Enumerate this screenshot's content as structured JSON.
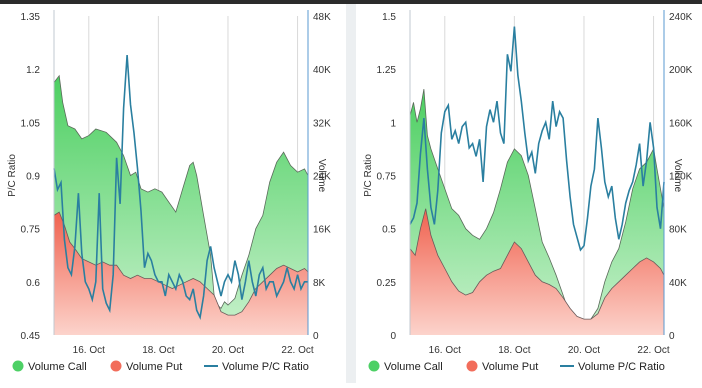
{
  "chart_data": [
    {
      "type": "area",
      "title": "",
      "xlabel": "",
      "ylabel": "P/C Ratio",
      "y2label": "Volume",
      "ylim": [
        0.45,
        1.35
      ],
      "y2lim": [
        0,
        48000
      ],
      "yticks": [
        "1.35",
        "1.2",
        "1.05",
        "0.9",
        "0.75",
        "0.6",
        "0.45"
      ],
      "y2ticks": [
        "48K",
        "40K",
        "32K",
        "24K",
        "16K",
        "8K",
        "0"
      ],
      "xticks": [
        "16. Oct",
        "18. Oct",
        "20. Oct",
        "22. Oct"
      ],
      "xtick_values": [
        16,
        18,
        20,
        22
      ],
      "xlim": [
        15.0,
        22.3
      ],
      "grid": "vertical",
      "legend_position": "bottom",
      "legend": [
        "Volume Call",
        "Volume Put",
        "Volume P/C Ratio"
      ],
      "series": [
        {
          "name": "Volume Call",
          "axis": "right",
          "color": "#4dd065",
          "x": [
            15.0,
            15.15,
            15.25,
            15.4,
            15.6,
            15.8,
            16.0,
            16.2,
            16.5,
            16.8,
            17.0,
            17.2,
            17.35,
            17.5,
            17.7,
            17.9,
            18.1,
            18.3,
            18.5,
            18.7,
            18.9,
            19.0,
            19.1,
            19.3,
            19.5,
            19.6,
            19.7,
            19.8,
            19.9,
            20.0,
            20.2,
            20.4,
            20.6,
            20.8,
            21.0,
            21.2,
            21.4,
            21.6,
            21.8,
            22.0,
            22.2,
            22.3
          ],
          "values": [
            38000,
            39000,
            35000,
            31500,
            31000,
            29500,
            30000,
            31000,
            30500,
            29000,
            27000,
            24000,
            24500,
            22000,
            21500,
            22000,
            21500,
            20000,
            18500,
            22000,
            25500,
            26000,
            24000,
            18000,
            12000,
            6000,
            4500,
            4000,
            5000,
            4500,
            5500,
            9000,
            12000,
            16000,
            18000,
            23000,
            26000,
            27500,
            25500,
            24500,
            25000,
            24000
          ]
        },
        {
          "name": "Volume Put",
          "axis": "right",
          "color": "#f26d5b",
          "x": [
            15.0,
            15.15,
            15.3,
            15.45,
            15.6,
            15.8,
            16.0,
            16.2,
            16.4,
            16.6,
            16.8,
            17.0,
            17.2,
            17.4,
            17.6,
            17.8,
            18.0,
            18.2,
            18.4,
            18.6,
            18.8,
            19.0,
            19.2,
            19.4,
            19.6,
            19.8,
            20.0,
            20.2,
            20.4,
            20.6,
            20.8,
            21.0,
            21.2,
            21.4,
            21.6,
            21.8,
            22.0,
            22.2,
            22.3
          ],
          "values": [
            18000,
            18500,
            16500,
            14000,
            13000,
            11500,
            11000,
            10500,
            11000,
            10500,
            10500,
            9000,
            8500,
            9000,
            8500,
            8500,
            8000,
            7500,
            7000,
            7500,
            8000,
            8500,
            8000,
            7000,
            6000,
            3500,
            3000,
            3000,
            3500,
            5000,
            7000,
            8000,
            9000,
            10000,
            10500,
            10000,
            9500,
            10000,
            9500
          ]
        },
        {
          "name": "Volume P/C Ratio",
          "axis": "left",
          "color": "#2a7fa0",
          "x": [
            15.0,
            15.1,
            15.2,
            15.3,
            15.4,
            15.5,
            15.6,
            15.7,
            15.8,
            15.9,
            16.0,
            16.1,
            16.2,
            16.3,
            16.4,
            16.5,
            16.6,
            16.7,
            16.8,
            16.9,
            17.0,
            17.1,
            17.2,
            17.3,
            17.4,
            17.5,
            17.6,
            17.7,
            17.8,
            17.9,
            18.0,
            18.1,
            18.2,
            18.3,
            18.4,
            18.5,
            18.6,
            18.7,
            18.8,
            18.9,
            19.0,
            19.1,
            19.2,
            19.3,
            19.4,
            19.5,
            19.6,
            19.7,
            19.8,
            19.9,
            20.0,
            20.1,
            20.2,
            20.3,
            20.4,
            20.5,
            20.6,
            20.7,
            20.8,
            20.9,
            21.0,
            21.1,
            21.2,
            21.3,
            21.4,
            21.5,
            21.6,
            21.7,
            21.8,
            21.9,
            22.0,
            22.1,
            22.2,
            22.3
          ],
          "values": [
            0.92,
            0.86,
            0.88,
            0.72,
            0.64,
            0.62,
            0.7,
            0.85,
            0.68,
            0.6,
            0.58,
            0.55,
            0.6,
            0.85,
            0.58,
            0.54,
            0.52,
            0.62,
            0.95,
            0.82,
            1.09,
            1.24,
            1.1,
            1.02,
            0.92,
            0.8,
            0.64,
            0.68,
            0.66,
            0.62,
            0.6,
            0.6,
            0.56,
            0.62,
            0.6,
            0.58,
            0.62,
            0.6,
            0.56,
            0.55,
            0.58,
            0.52,
            0.5,
            0.56,
            0.66,
            0.7,
            0.64,
            0.6,
            0.56,
            0.6,
            0.62,
            0.6,
            0.66,
            0.62,
            0.55,
            0.6,
            0.66,
            0.6,
            0.56,
            0.62,
            0.64,
            0.58,
            0.6,
            0.6,
            0.56,
            0.58,
            0.6,
            0.64,
            0.6,
            0.58,
            0.62,
            0.58,
            0.6,
            0.6
          ]
        }
      ]
    },
    {
      "type": "area",
      "title": "",
      "xlabel": "",
      "ylabel": "P/C Ratio",
      "y2label": "Volume",
      "ylim": [
        0,
        1.5
      ],
      "y2lim": [
        0,
        240000
      ],
      "yticks": [
        "1.5",
        "1.25",
        "1",
        "0.75",
        "0.5",
        "0.25",
        "0"
      ],
      "y2ticks": [
        "240K",
        "200K",
        "160K",
        "120K",
        "80K",
        "40K",
        "0"
      ],
      "xticks": [
        "16. Oct",
        "18. Oct",
        "20. Oct",
        "22. Oct"
      ],
      "xtick_values": [
        16,
        18,
        20,
        22
      ],
      "xlim": [
        15.0,
        22.3
      ],
      "grid": "vertical",
      "legend_position": "bottom",
      "legend": [
        "Volume Call",
        "Volume Put",
        "Volume P/C Ratio"
      ],
      "series": [
        {
          "name": "Volume Call",
          "axis": "right",
          "color": "#4dd065",
          "x": [
            15.0,
            15.1,
            15.2,
            15.3,
            15.4,
            15.5,
            15.6,
            15.8,
            16.0,
            16.2,
            16.4,
            16.6,
            16.8,
            17.0,
            17.2,
            17.4,
            17.6,
            17.8,
            18.0,
            18.2,
            18.4,
            18.6,
            18.8,
            19.0,
            19.2,
            19.4,
            19.6,
            19.8,
            20.0,
            20.2,
            20.4,
            20.6,
            20.8,
            21.0,
            21.2,
            21.4,
            21.6,
            21.8,
            22.0,
            22.1,
            22.2,
            22.3
          ],
          "values": [
            165000,
            175000,
            160000,
            170000,
            185000,
            150000,
            140000,
            125000,
            110000,
            95000,
            90000,
            80000,
            75000,
            72000,
            80000,
            92000,
            110000,
            130000,
            140000,
            135000,
            120000,
            95000,
            70000,
            58000,
            45000,
            30000,
            15000,
            8000,
            10000,
            12000,
            20000,
            40000,
            55000,
            65000,
            85000,
            110000,
            125000,
            130000,
            140000,
            125000,
            110000,
            95000
          ]
        },
        {
          "name": "Volume Put",
          "axis": "right",
          "color": "#f26d5b",
          "x": [
            15.0,
            15.15,
            15.3,
            15.45,
            15.6,
            15.8,
            16.0,
            16.2,
            16.4,
            16.6,
            16.8,
            17.0,
            17.2,
            17.4,
            17.6,
            17.8,
            18.0,
            18.2,
            18.4,
            18.6,
            18.8,
            19.0,
            19.2,
            19.4,
            19.6,
            19.8,
            20.0,
            20.2,
            20.4,
            20.6,
            20.8,
            21.0,
            21.2,
            21.4,
            21.6,
            21.8,
            22.0,
            22.2,
            22.3
          ],
          "values": [
            65000,
            60000,
            80000,
            95000,
            75000,
            60000,
            50000,
            40000,
            33000,
            30000,
            32000,
            40000,
            45000,
            48000,
            50000,
            60000,
            70000,
            65000,
            55000,
            45000,
            40000,
            38000,
            35000,
            28000,
            20000,
            14000,
            12000,
            12000,
            16000,
            28000,
            35000,
            40000,
            45000,
            50000,
            55000,
            58000,
            55000,
            50000,
            45000
          ]
        },
        {
          "name": "Volume P/C Ratio",
          "axis": "left",
          "color": "#2a7fa0",
          "x": [
            15.0,
            15.1,
            15.2,
            15.3,
            15.4,
            15.5,
            15.6,
            15.7,
            15.8,
            15.9,
            16.0,
            16.1,
            16.2,
            16.3,
            16.4,
            16.5,
            16.6,
            16.7,
            16.8,
            16.9,
            17.0,
            17.1,
            17.2,
            17.3,
            17.4,
            17.5,
            17.6,
            17.7,
            17.8,
            17.9,
            18.0,
            18.1,
            18.2,
            18.3,
            18.4,
            18.5,
            18.6,
            18.7,
            18.8,
            18.9,
            19.0,
            19.1,
            19.2,
            19.3,
            19.4,
            19.5,
            19.6,
            19.7,
            19.8,
            19.9,
            20.0,
            20.1,
            20.2,
            20.3,
            20.4,
            20.5,
            20.6,
            20.7,
            20.8,
            20.9,
            21.0,
            21.1,
            21.2,
            21.3,
            21.4,
            21.5,
            21.6,
            21.7,
            21.8,
            21.9,
            22.0,
            22.1,
            22.2,
            22.3
          ],
          "values": [
            0.52,
            0.55,
            0.62,
            0.85,
            1.02,
            0.78,
            0.6,
            0.52,
            0.68,
            0.95,
            1.05,
            1.08,
            0.92,
            0.96,
            0.9,
            0.98,
            1.0,
            0.88,
            0.9,
            0.84,
            0.92,
            0.72,
            0.98,
            1.06,
            1.0,
            1.1,
            0.95,
            0.9,
            1.32,
            1.24,
            1.45,
            1.22,
            1.1,
            0.95,
            0.82,
            0.86,
            0.76,
            0.9,
            0.96,
            1.0,
            0.92,
            1.1,
            0.98,
            1.05,
            1.02,
            0.82,
            0.65,
            0.52,
            0.46,
            0.4,
            0.42,
            0.55,
            0.7,
            0.78,
            1.02,
            0.88,
            0.72,
            0.65,
            0.7,
            0.55,
            0.45,
            0.52,
            0.62,
            0.68,
            0.72,
            0.8,
            0.9,
            0.7,
            0.82,
            1.0,
            0.88,
            0.6,
            0.5,
            0.72
          ]
        }
      ]
    }
  ]
}
